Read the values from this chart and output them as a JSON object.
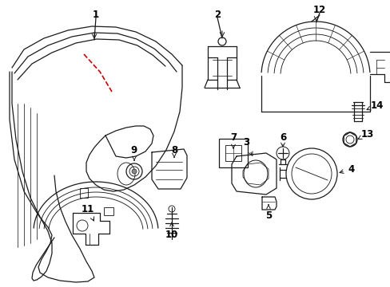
{
  "background_color": "#ffffff",
  "line_color": "#1a1a1a",
  "red_line_color": "#cc0000",
  "fig_width": 4.89,
  "fig_height": 3.6,
  "dpi": 100
}
